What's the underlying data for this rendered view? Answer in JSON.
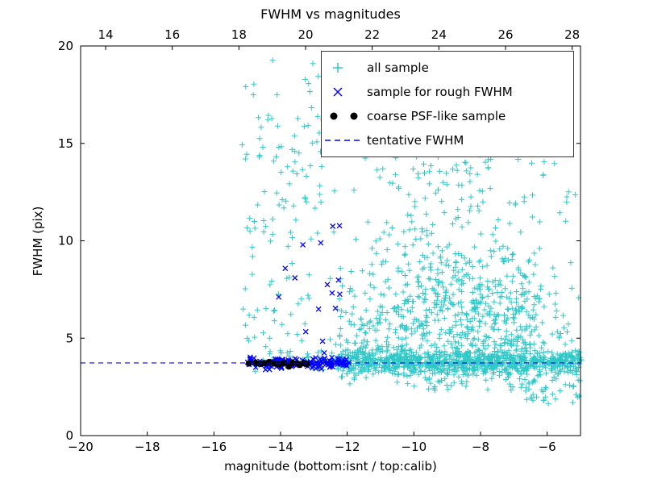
{
  "figure": {
    "title": "FWHM vs magnitudes",
    "xlabel": "magnitude (bottom:isnt / top:calib)",
    "ylabel": "FWHM (pix)"
  },
  "legend": {
    "items": [
      {
        "label": "all sample",
        "marker": "plus",
        "color": "#2ec8c8"
      },
      {
        "label": "sample for rough FWHM",
        "marker": "cross",
        "color": "#0000ff"
      },
      {
        "label": "coarse PSF-like sample",
        "marker": "dots",
        "color": "#000000"
      },
      {
        "label": "tentative FWHM",
        "marker": "dashed",
        "color": "#0000ff"
      }
    ]
  },
  "chart_data": {
    "type": "scatter",
    "title": "FWHM vs magnitudes",
    "xlabel": "magnitude (bottom:isnt / top:calib)",
    "ylabel": "FWHM (pix)",
    "grid": false,
    "legend_position": "upper right",
    "seed": 20,
    "tentative_fwhm": 3.73,
    "axes": {
      "x_bottom": {
        "range": [
          -20,
          -5
        ],
        "ticks": [
          {
            "v": -20,
            "label": "−20"
          },
          {
            "v": -18,
            "label": "−18"
          },
          {
            "v": -16,
            "label": "−16"
          },
          {
            "v": -14,
            "label": "−14"
          },
          {
            "v": -12,
            "label": "−12"
          },
          {
            "v": -10,
            "label": "−10"
          },
          {
            "v": -8,
            "label": "−8"
          },
          {
            "v": -6,
            "label": "−6"
          }
        ]
      },
      "x_top": {
        "range": [
          13.25,
          28.25
        ],
        "ticks": [
          {
            "v": 14,
            "label": "14"
          },
          {
            "v": 16,
            "label": "16"
          },
          {
            "v": 18,
            "label": "18"
          },
          {
            "v": 20,
            "label": "20"
          },
          {
            "v": 22,
            "label": "22"
          },
          {
            "v": 24,
            "label": "24"
          },
          {
            "v": 26,
            "label": "26"
          },
          {
            "v": 28,
            "label": "28"
          }
        ]
      },
      "y": {
        "range": [
          0,
          20
        ],
        "ticks": [
          {
            "v": 0,
            "label": "0"
          },
          {
            "v": 5,
            "label": "5"
          },
          {
            "v": 10,
            "label": "10"
          },
          {
            "v": 15,
            "label": "15"
          },
          {
            "v": 20,
            "label": "20"
          }
        ]
      }
    },
    "series": [
      {
        "name": "all sample",
        "marker": "plus",
        "color": "#2ec8c8",
        "clusters": [
          {
            "count": 850,
            "x": {
              "dist": "uniform",
              "min": -12.3,
              "max": -4.95
            },
            "y": {
              "dist": "gauss",
              "mean": 3.78,
              "sd": 0.28,
              "lo": 2.9,
              "hi": 5.4
            }
          },
          {
            "count": 650,
            "x": {
              "dist": "gauss",
              "mean": -8.3,
              "sd": 1.5,
              "lo": -12.4,
              "hi": -5.0
            },
            "y": {
              "dist": "gauss",
              "mean": 5.6,
              "sd": 2.0,
              "lo": 2.3,
              "hi": 13.0
            }
          },
          {
            "count": 130,
            "x": {
              "dist": "gauss",
              "mean": -9.3,
              "sd": 1.3,
              "lo": -12.3,
              "hi": -5.6
            },
            "y": {
              "dist": "uniform",
              "min": 8.5,
              "max": 14.6
            }
          },
          {
            "count": 120,
            "x": {
              "dist": "uniform",
              "min": -12.3,
              "max": -10.0
            },
            "y": {
              "dist": "gauss",
              "mean": 5.4,
              "sd": 1.8,
              "lo": 2.9,
              "hi": 11.5
            }
          },
          {
            "count": 110,
            "x": {
              "dist": "uniform",
              "min": -15.2,
              "max": -12.3
            },
            "y": {
              "dist": "uniform",
              "min": 4.2,
              "max": 16.4
            }
          },
          {
            "count": 22,
            "x": {
              "dist": "uniform",
              "min": -15.1,
              "max": -12.7
            },
            "y": {
              "dist": "uniform",
              "min": 14.5,
              "max": 19.4
            }
          },
          {
            "count": 45,
            "x": {
              "dist": "uniform",
              "min": -6.8,
              "max": -4.95
            },
            "y": {
              "dist": "uniform",
              "min": 1.6,
              "max": 3.2
            }
          },
          {
            "count": 50,
            "x": {
              "dist": "uniform",
              "min": -15.0,
              "max": -12.3
            },
            "y": {
              "dist": "gauss",
              "mean": 3.8,
              "sd": 0.25,
              "lo": 3.2,
              "hi": 4.6
            }
          },
          {
            "count": 15,
            "x": {
              "dist": "uniform",
              "min": -7.2,
              "max": -5.0
            },
            "y": {
              "dist": "uniform",
              "min": 10.5,
              "max": 14.5
            }
          }
        ]
      },
      {
        "name": "sample for rough FWHM",
        "marker": "cross",
        "color": "#0000ff",
        "clusters": [
          {
            "count": 130,
            "x": {
              "dist": "uniform",
              "min": -15.0,
              "max": -11.85
            },
            "y": {
              "dist": "gauss",
              "mean": 3.72,
              "sd": 0.15,
              "lo": 3.3,
              "hi": 4.25
            }
          },
          {
            "count": 15,
            "x": {
              "dist": "uniform",
              "min": -14.2,
              "max": -11.9
            },
            "y": {
              "dist": "uniform",
              "min": 4.8,
              "max": 11.4
            }
          }
        ]
      },
      {
        "name": "coarse PSF-like sample",
        "marker": "dot",
        "color": "#000000",
        "points": [
          [
            -14.95,
            3.7
          ],
          [
            -14.75,
            3.74
          ],
          [
            -14.6,
            3.68
          ],
          [
            -14.5,
            3.72
          ],
          [
            -14.35,
            3.77
          ],
          [
            -14.2,
            3.7
          ],
          [
            -14.05,
            3.65
          ],
          [
            -13.9,
            3.72
          ],
          [
            -13.75,
            3.55
          ],
          [
            -13.65,
            3.74
          ],
          [
            -13.5,
            3.7
          ],
          [
            -13.42,
            3.63
          ],
          [
            -13.3,
            3.72
          ],
          [
            -13.22,
            3.68
          ]
        ]
      },
      {
        "name": "tentative FWHM",
        "type": "hline",
        "y": 3.73,
        "color": "#0000ff",
        "dash": [
          6,
          5
        ]
      }
    ]
  }
}
